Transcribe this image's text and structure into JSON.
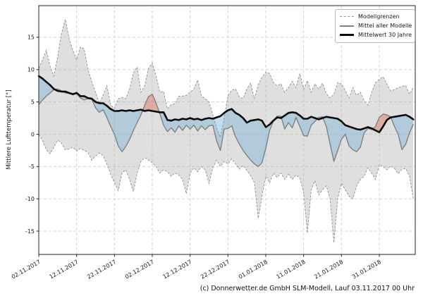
{
  "figure": {
    "ylabel": "Mittlere Lufttemperatur [°]",
    "caption": "(c) Donnerwetter.de GmbH SLM-Modell, Lauf 03.11.2017 00 Uhr"
  },
  "legend": {
    "items": [
      {
        "label": "Modellgrenzen"
      },
      {
        "label": "Mittel aller Modelle"
      },
      {
        "label": "Mittelwert 30 Jahre"
      }
    ]
  },
  "chart_data": {
    "type": "line",
    "title": "",
    "xlabel": "",
    "ylabel": "Mittlere Lufttemperatur [°]",
    "x_unit": "days since 02.11.2017 (daily values)",
    "xlim": [
      0,
      99.5
    ],
    "ylim": [
      -18.6,
      19.9
    ],
    "grid": true,
    "legend_position": "top-right",
    "x_ticks": {
      "days": [
        0,
        10,
        20,
        30,
        40,
        50,
        60,
        70,
        80,
        90
      ],
      "labels": [
        "02.11.2017",
        "12.11.2017",
        "22.11.2017",
        "02.12.2017",
        "12.12.2017",
        "22.12.2017",
        "01.01.2018",
        "11.01.2018",
        "21.01.2018",
        "31.01.2018"
      ]
    },
    "y_ticks": [
      -15,
      -10,
      -5,
      0,
      5,
      10,
      15
    ],
    "series": [
      {
        "name": "Modellgrenzen (obere Grenze)",
        "role": "band_top",
        "color": "#979797",
        "dash": true,
        "values": [
          10.2,
          11.5,
          13.0,
          10.5,
          9.0,
          12.0,
          15.5,
          17.8,
          14.8,
          13.0,
          11.5,
          13.5,
          13.2,
          10.0,
          8.2,
          6.5,
          4.8,
          6.0,
          7.5,
          4.5,
          4.0,
          5.5,
          5.7,
          5.5,
          7.0,
          9.5,
          10.4,
          6.5,
          7.5,
          10.2,
          11.0,
          9.0,
          6.5,
          6.6,
          3.9,
          4.6,
          4.7,
          5.9,
          5.9,
          6.0,
          6.5,
          7.0,
          8.4,
          5.9,
          5.5,
          5.0,
          3.0,
          1.0,
          -0.5,
          2.5,
          6.0,
          6.8,
          7.0,
          5.8,
          5.5,
          7.0,
          7.9,
          5.5,
          7.7,
          8.8,
          9.6,
          9.4,
          8.0,
          7.5,
          7.8,
          6.5,
          7.2,
          8.2,
          7.2,
          9.4,
          7.0,
          8.3,
          6.5,
          7.8,
          7.0,
          7.9,
          6.3,
          5.6,
          6.2,
          8.0,
          7.8,
          6.8,
          5.6,
          7.2,
          6.0,
          6.5,
          5.2,
          4.5,
          6.5,
          8.0,
          8.5,
          8.9,
          7.8,
          6.7,
          6.9,
          7.2,
          7.4,
          7.5,
          6.2,
          7.3
        ]
      },
      {
        "name": "Modellgrenzen (untere Grenze)",
        "role": "band_bottom",
        "color": "#979797",
        "dash": true,
        "values": [
          0.0,
          -1.0,
          -2.4,
          -3.0,
          -2.0,
          -0.9,
          -1.4,
          -2.4,
          -2.3,
          -2.0,
          -2.6,
          -2.2,
          -2.5,
          -2.8,
          -4.0,
          -3.4,
          -2.9,
          -3.3,
          -4.6,
          -6.2,
          -7.5,
          -8.7,
          -6.0,
          -5.5,
          -7.0,
          -8.9,
          -6.0,
          -4.2,
          -3.6,
          -4.0,
          -4.4,
          -5.0,
          -6.0,
          -5.5,
          -5.8,
          -6.5,
          -6.0,
          -6.3,
          -7.0,
          -9.2,
          -6.0,
          -5.2,
          -5.8,
          -5.0,
          -5.5,
          -7.6,
          -5.2,
          -4.0,
          -5.0,
          -4.2,
          -4.6,
          -3.8,
          -4.6,
          -5.4,
          -4.8,
          -5.6,
          -6.4,
          -7.5,
          -13.0,
          -9.5,
          -6.5,
          -7.5,
          -6.0,
          -6.7,
          -6.0,
          -7.0,
          -6.2,
          -7.0,
          -6.3,
          -6.8,
          -9.0,
          -15.3,
          -8.6,
          -7.2,
          -9.4,
          -8.6,
          -8.0,
          -10.0,
          -16.8,
          -10.0,
          -7.6,
          -8.6,
          -9.6,
          -10.0,
          -8.0,
          -7.0,
          -6.5,
          -5.2,
          -6.0,
          -7.0,
          -4.7,
          -5.0,
          -5.5,
          -4.9,
          -5.3,
          -6.1,
          -5.4,
          -5.3,
          -6.5,
          -10.0
        ]
      },
      {
        "name": "Mittel aller Modelle",
        "role": "model_mean",
        "color": "#808080",
        "dash": false,
        "values": [
          4.6,
          5.3,
          5.9,
          6.4,
          6.9,
          7.0,
          6.7,
          6.4,
          6.3,
          6.1,
          6.3,
          5.6,
          5.3,
          5.5,
          5.4,
          4.1,
          3.4,
          3.8,
          2.6,
          1.2,
          0.0,
          -1.8,
          -2.7,
          -1.9,
          -0.8,
          0.6,
          1.8,
          3.0,
          4.5,
          5.8,
          6.2,
          4.8,
          3.2,
          1.4,
          0.4,
          1.0,
          0.3,
          1.3,
          0.6,
          1.4,
          0.8,
          1.4,
          0.5,
          1.3,
          0.7,
          1.3,
          1.4,
          -1.0,
          -2.5,
          0.8,
          0.9,
          1.3,
          -0.4,
          -1.5,
          -2.5,
          -3.3,
          -4.0,
          -4.6,
          -5.0,
          -4.4,
          -2.2,
          0.6,
          2.0,
          2.8,
          2.8,
          0.8,
          1.8,
          1.0,
          2.6,
          1.2,
          -0.2,
          -0.3,
          1.4,
          2.0,
          2.6,
          2.7,
          1.2,
          -1.5,
          -4.2,
          -2.5,
          -0.8,
          0.0,
          -1.8,
          -2.4,
          -2.7,
          -2.0,
          0.2,
          0.9,
          0.7,
          1.2,
          2.6,
          3.1,
          3.0,
          2.7,
          1.2,
          0.0,
          -2.4,
          -1.5,
          0.2,
          1.6
        ]
      },
      {
        "name": "Mittelwert 30 Jahre",
        "role": "mean_30y",
        "color": "#0a0a0a",
        "dash": false,
        "values": [
          9.0,
          8.6,
          8.1,
          7.6,
          7.0,
          6.7,
          6.6,
          6.6,
          6.4,
          6.2,
          6.4,
          5.9,
          5.9,
          5.6,
          5.5,
          5.0,
          4.8,
          4.8,
          4.4,
          3.9,
          3.6,
          3.6,
          3.7,
          3.6,
          3.7,
          3.6,
          3.7,
          3.8,
          3.6,
          3.7,
          3.6,
          3.5,
          3.4,
          3.4,
          2.2,
          2.1,
          2.3,
          2.2,
          2.4,
          2.3,
          2.5,
          2.3,
          2.4,
          2.2,
          2.4,
          2.5,
          2.4,
          2.6,
          2.8,
          3.3,
          3.7,
          3.9,
          3.3,
          3.0,
          2.5,
          1.8,
          2.1,
          2.2,
          2.3,
          2.1,
          1.1,
          1.5,
          2.1,
          2.6,
          2.5,
          2.9,
          3.3,
          3.4,
          3.3,
          2.9,
          2.4,
          2.4,
          2.7,
          2.5,
          2.3,
          2.5,
          2.7,
          2.6,
          2.5,
          2.4,
          2.0,
          1.4,
          1.2,
          1.0,
          0.8,
          0.7,
          0.9,
          1.1,
          0.9,
          0.6,
          0.3,
          1.2,
          2.2,
          2.6,
          2.7,
          2.8,
          2.9,
          3.0,
          2.7,
          2.3
        ]
      }
    ],
    "fills": {
      "band": "rgba(175,175,175,0.4)",
      "above_mean": "rgba(225,110,90,0.45)",
      "below_mean": "rgba(120,180,215,0.45)"
    },
    "colors": {
      "grid": "#c9c9c9",
      "frame": "#262626",
      "band_edge": "#979797"
    }
  }
}
